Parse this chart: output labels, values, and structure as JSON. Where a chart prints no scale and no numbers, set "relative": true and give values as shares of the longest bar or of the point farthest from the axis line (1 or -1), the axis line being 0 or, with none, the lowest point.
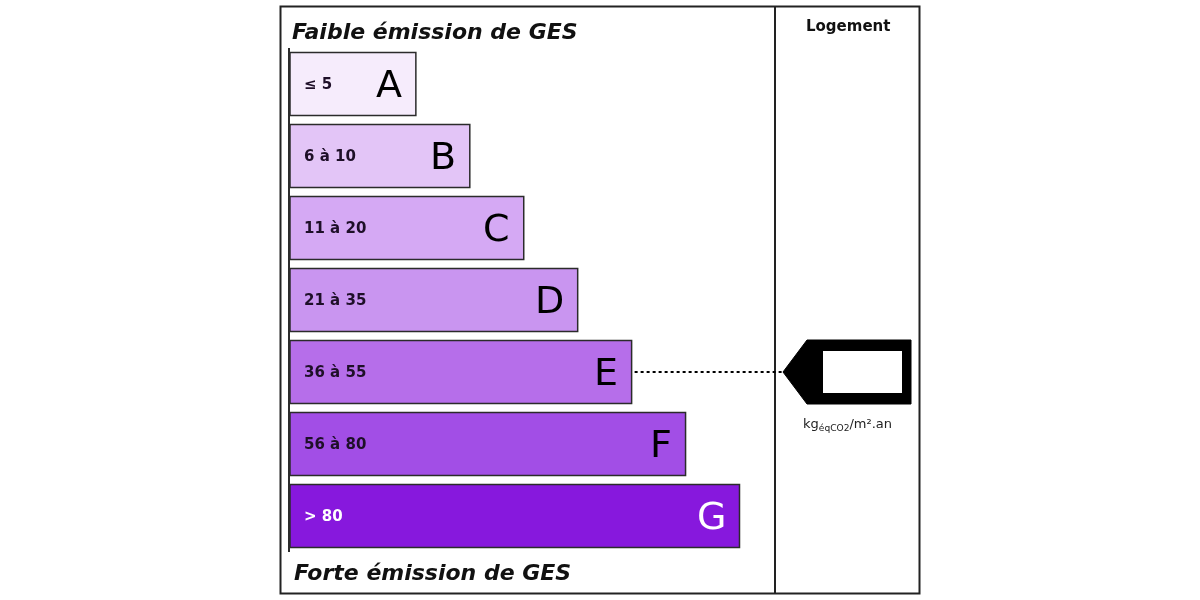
{
  "chart_data": {
    "type": "bar",
    "orientation": "horizontal",
    "relative": true,
    "title": "Faible émission de GES",
    "categories": [
      "A",
      "B",
      "C",
      "D",
      "E",
      "F",
      "G"
    ],
    "values": [
      0.28,
      0.4,
      0.52,
      0.64,
      0.76,
      0.88,
      1
    ],
    "colors": [
      "#f6ecfc",
      "#e3c5f7",
      "#d5a9f4",
      "#c995f0",
      "#b66eea",
      "#a24ee6",
      "#8718dd"
    ],
    "annotations": [
      "Forte émission de GES",
      "Logement",
      "kg$_{éqCO2}$/m².an",
      "≤ 5",
      "6 à 10",
      "11 à 20",
      "21 à 35",
      "36 à 55",
      "56 à 80",
      "> 80"
    ],
    "ref_lines": [
      {
        "axis": "y",
        "value": "E",
        "color": "#000000",
        "line_style": "dotted"
      }
    ]
  }
}
